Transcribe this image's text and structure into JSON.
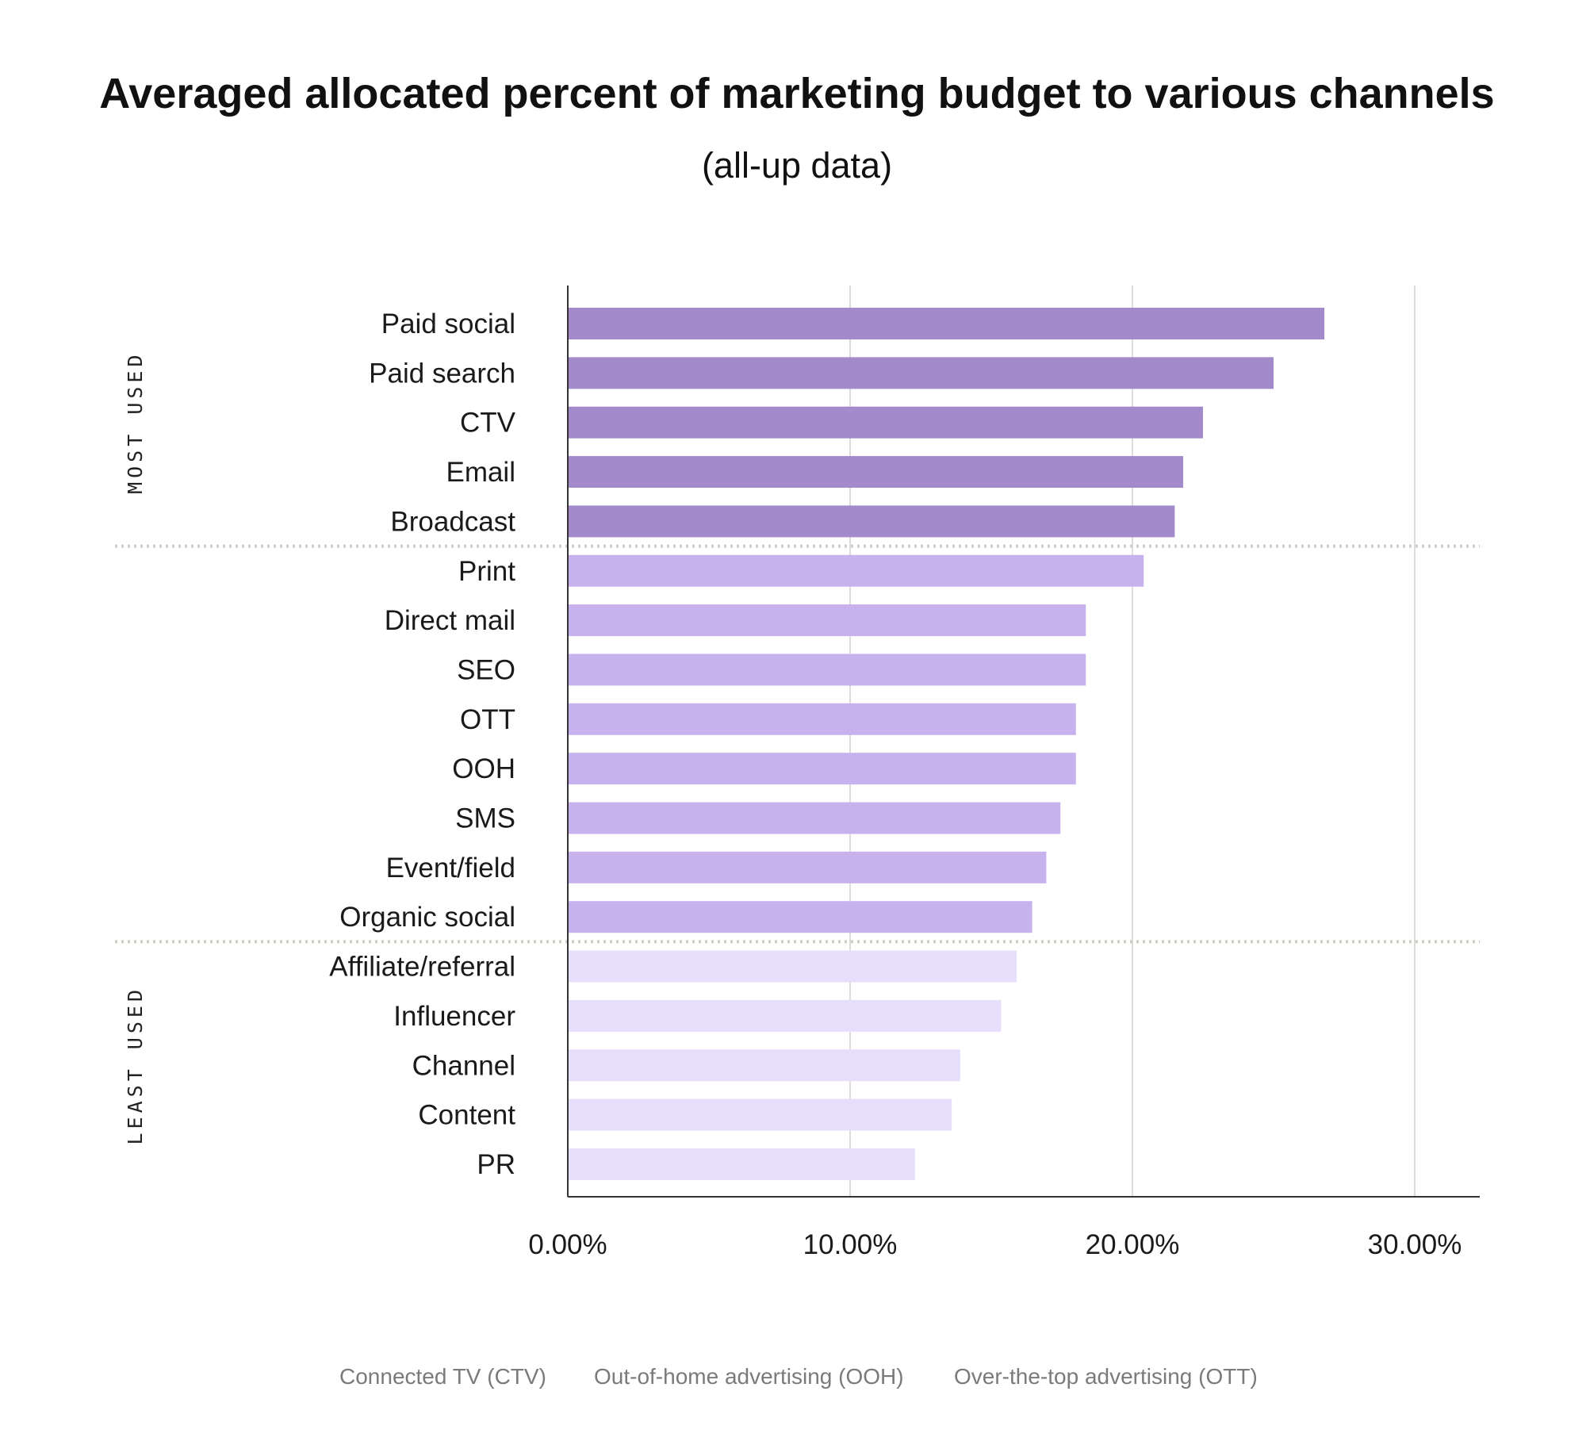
{
  "chart_data": {
    "type": "bar",
    "orientation": "horizontal",
    "title": "Averaged allocated percent of marketing budget to various channels",
    "subtitle": "(all-up data)",
    "categories": [
      "Paid social",
      "Paid search",
      "CTV",
      "Email",
      "Broadcast",
      "Print",
      "Direct mail",
      "SEO",
      "OTT",
      "OOH",
      "SMS",
      "Event/field",
      "Organic social",
      "Affiliate/referral",
      "Influencer",
      "Channel",
      "Content",
      "PR"
    ],
    "values": [
      26.8,
      25.0,
      22.5,
      21.8,
      21.5,
      20.4,
      18.35,
      18.35,
      18.0,
      18.0,
      17.45,
      16.95,
      16.45,
      15.9,
      15.35,
      13.9,
      13.6,
      12.3
    ],
    "groups": [
      {
        "label": "MOST USED",
        "start": 0,
        "end": 4,
        "color": "#a38bcb"
      },
      {
        "label": "",
        "start": 5,
        "end": 12,
        "color": "#c8b2ee"
      },
      {
        "label": "LEAST USED",
        "start": 13,
        "end": 17,
        "color": "#e7defb"
      }
    ],
    "xlim": [
      0,
      32
    ],
    "xticks": [
      0,
      10,
      20,
      30
    ],
    "xtick_labels": [
      "0.00%",
      "10.00%",
      "20.00%",
      "30.00%"
    ],
    "xlabel": "",
    "ylabel": "",
    "grid": true,
    "footnotes": [
      "Connected TV (CTV)",
      "Out-of-home advertising (OOH)",
      "Over-the-top advertising (OTT)"
    ]
  }
}
